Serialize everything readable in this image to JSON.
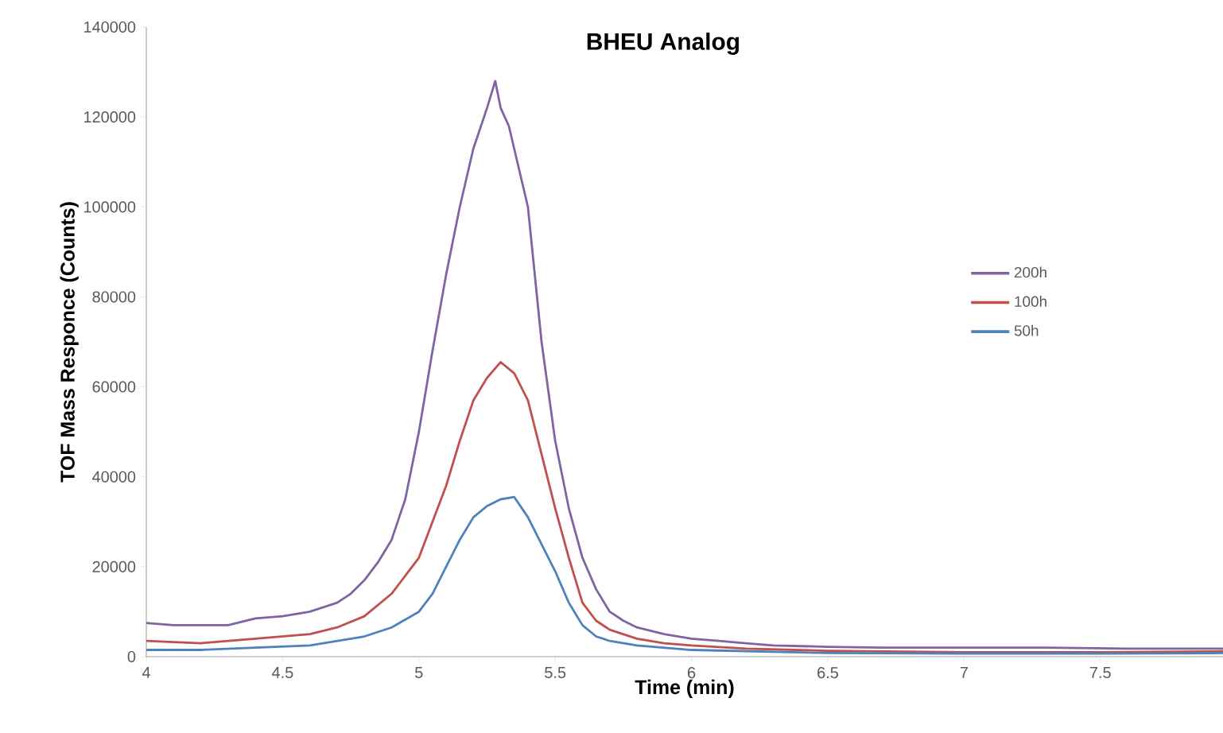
{
  "chart_data": {
    "type": "line",
    "title": "BHEU Analog",
    "xlabel": "Time (min)",
    "ylabel": "TOF Mass Responce (Counts)",
    "xlim": [
      4,
      7.95
    ],
    "xticks": [
      4,
      4.5,
      5,
      5.5,
      6,
      6.5,
      7,
      7.5
    ],
    "ylim": [
      0,
      140000
    ],
    "yticks": [
      0,
      20000,
      40000,
      60000,
      80000,
      100000,
      120000,
      140000
    ],
    "grid": false,
    "legend": "right",
    "marker": "none",
    "line_style": "solid",
    "series": [
      {
        "name": "200h",
        "color": "#8064a2",
        "x": [
          4.0,
          4.1,
          4.2,
          4.3,
          4.4,
          4.5,
          4.6,
          4.7,
          4.75,
          4.8,
          4.85,
          4.9,
          4.95,
          5.0,
          5.05,
          5.1,
          5.15,
          5.2,
          5.25,
          5.28,
          5.3,
          5.33,
          5.4,
          5.45,
          5.5,
          5.55,
          5.6,
          5.65,
          5.7,
          5.75,
          5.8,
          5.9,
          6.0,
          6.1,
          6.2,
          6.3,
          6.5,
          6.7,
          7.0,
          7.3,
          7.6,
          7.95
        ],
        "values": [
          7500,
          7000,
          7000,
          7000,
          8500,
          9000,
          10000,
          12000,
          14000,
          17000,
          21000,
          26000,
          35000,
          50000,
          68000,
          85000,
          100000,
          113000,
          122000,
          128000,
          122000,
          118000,
          100000,
          70000,
          48000,
          33000,
          22000,
          15000,
          10000,
          8000,
          6500,
          5000,
          4000,
          3500,
          3000,
          2500,
          2200,
          2000,
          2000,
          2000,
          1800,
          1800
        ]
      },
      {
        "name": "100h",
        "color": "#c0504d",
        "x": [
          4.0,
          4.2,
          4.4,
          4.6,
          4.7,
          4.8,
          4.9,
          5.0,
          5.05,
          5.1,
          5.15,
          5.2,
          5.25,
          5.3,
          5.35,
          5.4,
          5.45,
          5.5,
          5.55,
          5.6,
          5.65,
          5.7,
          5.8,
          5.9,
          6.0,
          6.2,
          6.5,
          7.0,
          7.5,
          7.95
        ],
        "values": [
          3500,
          3000,
          4000,
          5000,
          6500,
          9000,
          14000,
          22000,
          30000,
          38000,
          48000,
          57000,
          62000,
          65500,
          63000,
          57000,
          45000,
          33000,
          22000,
          12000,
          8000,
          6000,
          4000,
          3000,
          2500,
          1800,
          1300,
          1000,
          1000,
          1200
        ]
      },
      {
        "name": "50h",
        "color": "#4f81bd",
        "x": [
          4.0,
          4.2,
          4.4,
          4.6,
          4.8,
          4.9,
          5.0,
          5.05,
          5.1,
          5.15,
          5.2,
          5.25,
          5.3,
          5.35,
          5.4,
          5.45,
          5.5,
          5.55,
          5.6,
          5.65,
          5.7,
          5.8,
          6.0,
          6.5,
          7.0,
          7.5,
          7.95
        ],
        "values": [
          1500,
          1500,
          2000,
          2500,
          4500,
          6500,
          10000,
          14000,
          20000,
          26000,
          31000,
          33500,
          35000,
          35500,
          31000,
          25000,
          19000,
          12000,
          7000,
          4500,
          3500,
          2500,
          1500,
          800,
          700,
          700,
          800
        ]
      }
    ]
  }
}
